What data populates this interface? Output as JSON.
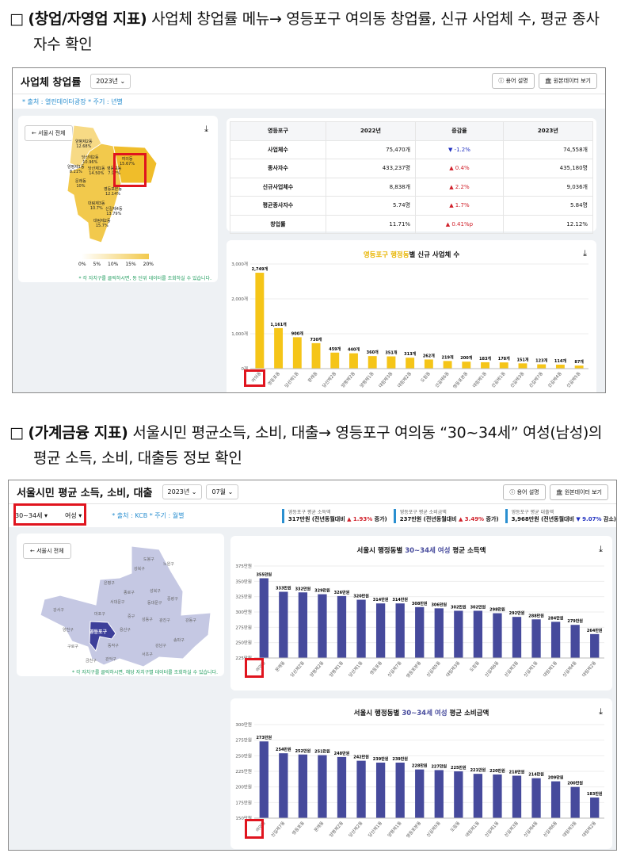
{
  "section1": {
    "bullet": "□",
    "bold": "(창업/자영업 지표)",
    "text": " 사업체 창업률 메뉴→ 영등포구 여의동 창업률, 신규 사업체 수, 평균 종사자수 확인"
  },
  "section2": {
    "bullet": "□",
    "bold": "(가계금융 지표)",
    "text": " 서울시민 평균소득, 소비, 대출→ 영등포구 여의동 “30~34세” 여성(남성)의 평균 소득, 소비, 대출등 정보 확인"
  },
  "shot1": {
    "title": "사업체 창업률",
    "year": "2023년 ⌄",
    "help": "ⓘ 용어 설명",
    "raw": "🏛 원본데이터 보기",
    "source": "* 출처 : 열린데이터광장 * 주기 : 년별",
    "back": "← 서울시 전체",
    "note": "* 각 자치구를 클릭하시면, 동 단위 데이터를 조회하실 수 있습니다.",
    "legend": [
      "0%",
      "5%",
      "10%",
      "15%",
      "20%"
    ],
    "map_labels": [
      [
        "양평제2동",
        "12.68%"
      ],
      [
        "당산제2동",
        "10.96%"
      ],
      [
        "여의동",
        "15.67%"
      ],
      [
        "양평제1동",
        "8.21%"
      ],
      [
        "당산제1동",
        "14.50%"
      ],
      [
        "영등포동",
        "7.97%"
      ],
      [
        "문래동",
        "10%"
      ],
      [
        "영등포본동",
        "12.14%"
      ],
      [
        "대림제3동",
        "10.7%"
      ],
      [
        "신길제4동",
        "13.79%"
      ],
      [
        "대림제2동",
        "15.7%"
      ]
    ],
    "colors": {
      "map": "#f2c94c",
      "bar": "#f5c518",
      "title_accent": "#e8b400"
    },
    "table": {
      "headers": [
        "영등포구",
        "2022년",
        "증감율",
        "2023년"
      ],
      "rows": [
        [
          "사업체수",
          "75,470개",
          "▼ -1.2%",
          "74,558개",
          "down"
        ],
        [
          "종사자수",
          "433,237명",
          "▲ 0.4%",
          "435,180명",
          "up"
        ],
        [
          "신규사업체수",
          "8,838개",
          "▲ 2.2%",
          "9,036개",
          "up"
        ],
        [
          "평균종사자수",
          "5.74명",
          "▲ 1.7%",
          "5.84명",
          "up"
        ],
        [
          "창업률",
          "11.71%",
          "▲ 0.41%p",
          "12.12%",
          "up"
        ]
      ]
    },
    "chart_data": {
      "type": "bar",
      "title_accent": "영등포구 행정동",
      "title": "별 신규 사업체 수",
      "ylim": [
        0,
        3000
      ],
      "yticks": [
        "0개",
        "1,000개",
        "2,000개",
        "3,000개"
      ],
      "categories": [
        "여의동",
        "영등포동",
        "당산제1동",
        "문래동",
        "당산제2동",
        "양평제2동",
        "양평제1동",
        "대림제3동",
        "대림제2동",
        "도림동",
        "신길제6동",
        "영등포본동",
        "대림제1동",
        "신길제1동",
        "신길제3동",
        "신길제7동",
        "신길제4동",
        "신길제5동"
      ],
      "values": [
        2749,
        1161,
        900,
        730,
        459,
        440,
        360,
        351,
        313,
        262,
        219,
        200,
        183,
        178,
        151,
        123,
        114,
        87
      ],
      "labels": [
        "2,749개",
        "1,161개",
        "900개",
        "730개",
        "459개",
        "440개",
        "360개",
        "351개",
        "313개",
        "262개",
        "219개",
        "200개",
        "183개",
        "178개",
        "151개",
        "123개",
        "114개",
        "87개"
      ]
    }
  },
  "shot2": {
    "title": "서울시민 평균 소득, 소비, 대출",
    "year": "2023년 ⌄",
    "month": "07월 ⌄",
    "help": "ⓘ 용어 설명",
    "raw": "🏛 원본데이터 보기",
    "age": "30~34세 ▾",
    "gender": "여성 ▾",
    "source": "* 출처 : KCB * 주기 : 월별",
    "kpis": [
      {
        "label": "영등포구 평균 소득액",
        "value": "317만원 (전년동월대비 ",
        "delta": "▲ 1.93%",
        "tail": " 증가)",
        "dir": "up"
      },
      {
        "label": "영등포구 평균 소비금액",
        "value": "237만원 (전년동월대비 ",
        "delta": "▲ 3.49%",
        "tail": " 증가)",
        "dir": "up"
      },
      {
        "label": "영등포구 평균 대출액",
        "value": "3,968만원 (전년동월대비 ",
        "delta": "▼ 9.07%",
        "tail": " 감소)",
        "dir": "down"
      }
    ],
    "back": "← 서울시 전체",
    "note": "* 각 자치구를 클릭하시면, 해당 자치구별 데이터를 조회하실 수 있습니다.",
    "selected_district": "영등포구",
    "districts": [
      "도봉구",
      "노원구",
      "강북구",
      "은평구",
      "성북구",
      "종로구",
      "중랑구",
      "서대문구",
      "동대문구",
      "강서구",
      "마포구",
      "중구",
      "성동구",
      "광진구",
      "강동구",
      "양천구",
      "용산구",
      "구로구",
      "동작구",
      "강남구",
      "송파구",
      "서초구",
      "금천구",
      "관악구"
    ],
    "colors": {
      "map": "#c5c8e3",
      "selected": "#3d3f9a",
      "bar": "#464a9c"
    },
    "chart_income": {
      "type": "bar",
      "title_pre": "서울시 행정동별 ",
      "title_accent": "30~34세 여성",
      "title_post": " 평균 소득액",
      "ylim": [
        225,
        375
      ],
      "yticks": [
        "225만원",
        "250만원",
        "275만원",
        "300만원",
        "325만원",
        "350만원",
        "375만원"
      ],
      "categories": [
        "여의동",
        "문래동",
        "당산제2동",
        "양평제2동",
        "양평제1동",
        "당산제1동",
        "영등포동",
        "신길제7동",
        "영등포본동",
        "신길제5동",
        "대림제3동",
        "도림동",
        "신길제6동",
        "신길제3동",
        "신길제1동",
        "대림제1동",
        "신길제4동",
        "대림제2동"
      ],
      "values": [
        355,
        333,
        332,
        329,
        326,
        320,
        314,
        314,
        308,
        306,
        302,
        302,
        298,
        292,
        288,
        284,
        279,
        264
      ],
      "labels": [
        "355만원",
        "333만원",
        "332만원",
        "329만원",
        "326만원",
        "320만원",
        "314만원",
        "314만원",
        "308만원",
        "306만원",
        "302만원",
        "302만원",
        "298만원",
        "292만원",
        "288만원",
        "284만원",
        "279만원",
        "264만원"
      ]
    },
    "chart_spend": {
      "type": "bar",
      "title_pre": "서울시 행정동별 ",
      "title_accent": "30~34세 여성",
      "title_post": " 평균 소비금액",
      "ylim": [
        150,
        300
      ],
      "yticks": [
        "150만원",
        "175만원",
        "200만원",
        "225만원",
        "250만원",
        "275만원",
        "300만원"
      ],
      "categories": [
        "여의동",
        "신길제7동",
        "영등포동",
        "문래동",
        "양평제2동",
        "당산제2동",
        "당산제1동",
        "양평제1동",
        "영등포본동",
        "신길제5동",
        "도림동",
        "대림제1동",
        "신길제1동",
        "신길제3동",
        "신길제4동",
        "신길제6동",
        "대림제3동",
        "대림제2동"
      ],
      "values": [
        273,
        254,
        252,
        251,
        248,
        242,
        239,
        239,
        228,
        227,
        225,
        221,
        220,
        218,
        214,
        209,
        200,
        183
      ],
      "labels": [
        "273만원",
        "254만원",
        "252만원",
        "251만원",
        "248만원",
        "242만원",
        "239만원",
        "239만원",
        "228만원",
        "227만원",
        "225만원",
        "221만원",
        "220만원",
        "218만원",
        "214만원",
        "209만원",
        "200만원",
        "183만원"
      ]
    }
  }
}
